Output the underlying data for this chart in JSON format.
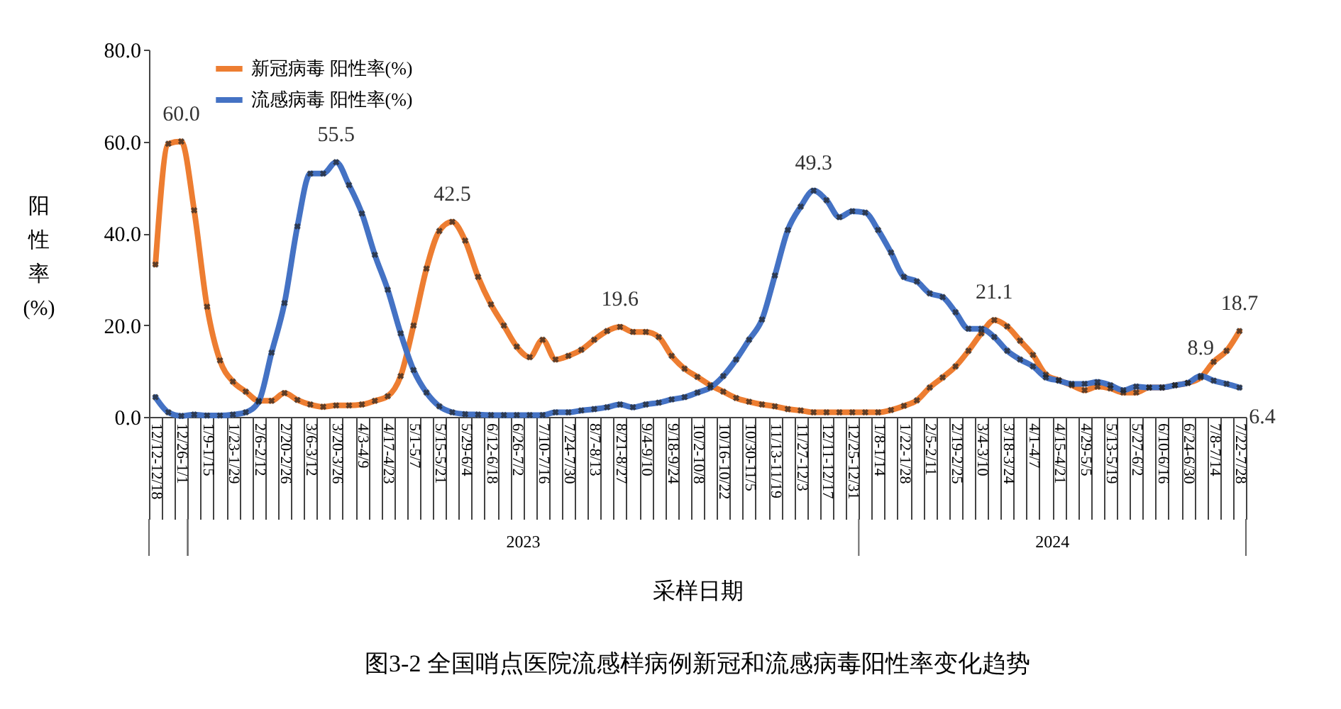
{
  "chart_data": {
    "type": "line",
    "title": "图3-2 全国哨点医院流感样病例新冠和流感病毒阳性率变化趋势",
    "xlabel": "采样日期",
    "ylabel": "阳性率(%)",
    "categories": [
      "12/12-12/18",
      null,
      "12/26-1/1",
      null,
      "1/9-1/15",
      null,
      "1/23-1/29",
      null,
      "2/6-2/12",
      null,
      "2/20-2/26",
      null,
      "3/6-3/12",
      null,
      "3/20-3/26",
      null,
      "4/3-4/9",
      null,
      "4/17-4/23",
      null,
      "5/1-5/7",
      null,
      "5/15-5/21",
      null,
      "5/29-6/4",
      null,
      "6/12-6/18",
      null,
      "6/26-7/2",
      null,
      "7/10-7/16",
      null,
      "7/24-7/30",
      null,
      "8/7-8/13",
      null,
      "8/21-8/27",
      null,
      "9/4-9/10",
      null,
      "9/18-9/24",
      null,
      "10/2-10/8",
      null,
      "10/16-10/22",
      null,
      "10/30-11/5",
      null,
      "11/13-11/19",
      null,
      "11/27-12/3",
      null,
      "12/11-12/17",
      null,
      "12/25-12/31",
      null,
      "1/8-1/14",
      null,
      "1/22-1/28",
      null,
      "2/5-2/11",
      null,
      "2/19-2/25",
      null,
      "3/4-3/10",
      null,
      "3/18-3/24",
      null,
      "4/1-4/7",
      null,
      "4/15-4/21",
      null,
      "4/29-5/5",
      null,
      "5/13-5/19",
      null,
      "5/27-6/2",
      null,
      "6/10-6/16",
      null,
      "6/24-6/30",
      null,
      "7/8-7/14",
      null,
      "7/22-7/28"
    ],
    "series": [
      {
        "name": "新冠病毒 阳性率(%)",
        "color": "#ed7d31",
        "values": [
          33.2,
          59.5,
          60.0,
          45.0,
          24.0,
          12.3,
          7.7,
          5.5,
          3.5,
          3.5,
          5.2,
          3.7,
          2.7,
          2.2,
          2.5,
          2.5,
          2.7,
          3.5,
          4.5,
          8.9,
          19.9,
          32.3,
          40.5,
          42.5,
          38.4,
          30.5,
          24.5,
          19.9,
          15.3,
          13.0,
          16.8,
          12.5,
          13.3,
          14.6,
          16.8,
          18.7,
          19.6,
          18.5,
          18.5,
          17.4,
          13.3,
          10.5,
          8.7,
          6.9,
          5.5,
          4.1,
          3.3,
          2.7,
          2.3,
          1.7,
          1.4,
          1.0,
          1.0,
          1.0,
          1.0,
          1.0,
          1.0,
          1.5,
          2.4,
          3.6,
          6.4,
          8.6,
          11.0,
          14.4,
          18.2,
          21.1,
          19.7,
          16.6,
          13.5,
          9.2,
          8.0,
          6.9,
          5.8,
          6.6,
          6.2,
          5.3,
          5.3,
          6.4,
          6.4,
          6.9,
          7.4,
          8.6,
          12.0,
          14.4,
          18.7
        ],
        "value_labels": [
          null,
          null,
          "60.0",
          null,
          null,
          null,
          null,
          null,
          null,
          null,
          null,
          null,
          null,
          null,
          null,
          null,
          null,
          null,
          null,
          null,
          null,
          null,
          null,
          "42.5",
          null,
          null,
          null,
          null,
          null,
          null,
          null,
          null,
          null,
          null,
          null,
          null,
          "19.6",
          null,
          null,
          null,
          null,
          null,
          null,
          null,
          null,
          null,
          null,
          null,
          null,
          null,
          null,
          null,
          null,
          null,
          null,
          null,
          null,
          null,
          null,
          null,
          null,
          null,
          null,
          null,
          null,
          "21.1",
          null,
          null,
          null,
          null,
          null,
          null,
          null,
          null,
          null,
          null,
          null,
          null,
          null,
          null,
          null,
          null,
          null,
          null,
          "18.7"
        ]
      },
      {
        "name": "流感病毒 阳性率(%)",
        "color": "#4472c4",
        "values": [
          4.3,
          1.0,
          0.2,
          0.5,
          0.3,
          0.3,
          0.5,
          1.0,
          3.3,
          14.0,
          24.8,
          41.5,
          53.0,
          53.0,
          55.5,
          50.5,
          44.3,
          35.3,
          27.7,
          18.2,
          10.2,
          5.3,
          2.3,
          1.0,
          0.6,
          0.5,
          0.4,
          0.4,
          0.4,
          0.4,
          0.4,
          1.0,
          1.0,
          1.4,
          1.7,
          2.1,
          2.7,
          2.1,
          2.7,
          3.1,
          3.8,
          4.3,
          5.3,
          6.4,
          8.9,
          12.5,
          16.8,
          21.2,
          30.8,
          40.7,
          45.8,
          49.3,
          47.2,
          43.5,
          44.8,
          44.5,
          40.7,
          35.8,
          30.5,
          29.5,
          26.9,
          26.1,
          22.8,
          19.2,
          19.2,
          17.4,
          14.4,
          12.5,
          11.0,
          8.6,
          7.9,
          7.2,
          7.2,
          7.6,
          6.9,
          5.8,
          6.6,
          6.4,
          6.4,
          6.9,
          7.4,
          8.9,
          7.9,
          7.2,
          6.4
        ],
        "value_labels": [
          null,
          null,
          null,
          null,
          null,
          null,
          null,
          null,
          null,
          null,
          null,
          null,
          null,
          null,
          "55.5",
          null,
          null,
          null,
          null,
          null,
          null,
          null,
          null,
          null,
          null,
          null,
          null,
          null,
          null,
          null,
          null,
          null,
          null,
          null,
          null,
          null,
          null,
          null,
          null,
          null,
          null,
          null,
          null,
          null,
          null,
          null,
          null,
          null,
          null,
          null,
          null,
          "49.3",
          null,
          null,
          null,
          null,
          null,
          null,
          null,
          null,
          null,
          null,
          null,
          null,
          null,
          null,
          null,
          null,
          null,
          null,
          null,
          null,
          null,
          null,
          null,
          null,
          null,
          null,
          null,
          null,
          null,
          "8.9",
          null,
          null,
          "6.4"
        ]
      }
    ],
    "annotations": [
      "2023",
      "2024"
    ],
    "ylim": [
      0,
      80
    ],
    "yticks": [
      {
        "value": 0,
        "label": "0.0"
      },
      {
        "value": 20,
        "label": "20.0"
      },
      {
        "value": 40,
        "label": "40.0"
      },
      {
        "value": 60,
        "label": "60.0"
      },
      {
        "value": 80,
        "label": "80.0"
      }
    ],
    "legend": "top left",
    "marker": "cross",
    "line_style": "solid"
  }
}
